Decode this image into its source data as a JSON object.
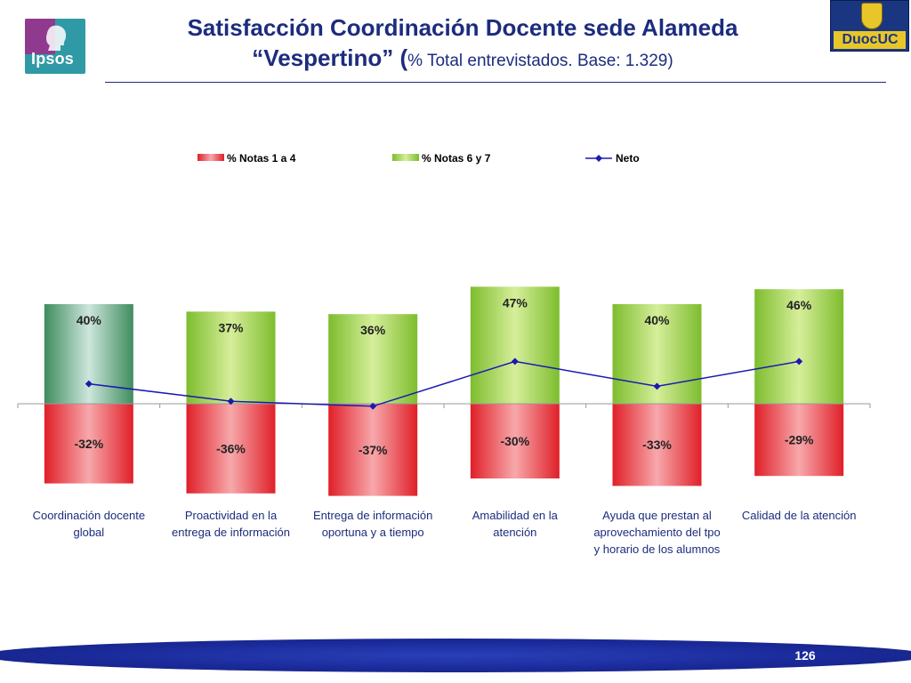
{
  "header": {
    "title_line1": "Satisfacción Coordinación Docente sede Alameda",
    "title_line2": "“Vespertino”",
    "title_paren": "(",
    "title_subtitle": "% Total entrevistados. Base: 1.329)",
    "ipsos_logo_text": "Ipsos",
    "duoc_logo_text": "DuocUC"
  },
  "colors": {
    "title": "#1c2c7e",
    "negative_bar": "#e8282f",
    "positive_bar": "#8cc63f",
    "highlight_bar": "#4a9a6a",
    "net_line": "#1a1ab0",
    "footer": "#1a2a9a"
  },
  "chart_data": {
    "type": "bar",
    "categories": [
      [
        "Coordinación docente",
        "global"
      ],
      [
        "Proactividad en la",
        "entrega de información"
      ],
      [
        "Entrega de información",
        "oportuna y a tiempo"
      ],
      [
        "Amabilidad en la",
        "atención"
      ],
      [
        "Ayuda que prestan al",
        "aprovechamiento del tpo",
        "y horario de los alumnos"
      ],
      [
        "Calidad de la atención"
      ]
    ],
    "series": [
      {
        "name": "% Notas 1 a 4",
        "values": [
          -32,
          -36,
          -37,
          -30,
          -33,
          -29
        ],
        "labels": [
          "-32%",
          "-36%",
          "-37%",
          "-30%",
          "-33%",
          "-29%"
        ]
      },
      {
        "name": "% Notas 6 y 7",
        "values": [
          40,
          37,
          36,
          47,
          40,
          46
        ],
        "labels": [
          "40%",
          "37%",
          "36%",
          "47%",
          "40%",
          "46%"
        ]
      },
      {
        "name": "Neto",
        "type": "line",
        "values": [
          8,
          1,
          -1,
          17,
          7,
          17
        ]
      }
    ],
    "legend_position": "top",
    "grid": false
  },
  "footer": {
    "page_number": "126"
  }
}
